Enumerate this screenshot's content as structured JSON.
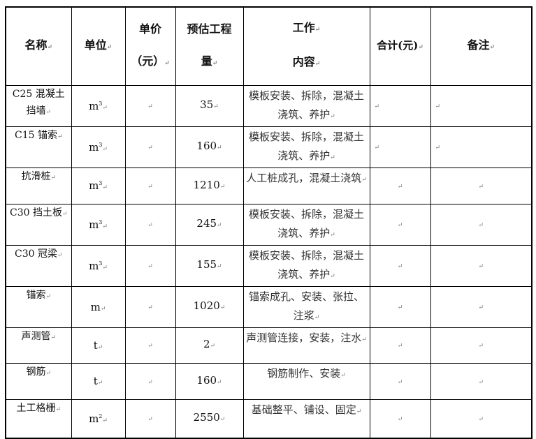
{
  "table": {
    "headers": [
      {
        "lines": [
          "名称"
        ]
      },
      {
        "lines": [
          "单位"
        ]
      },
      {
        "lines": [
          "单价",
          "（元）"
        ]
      },
      {
        "lines": [
          "预估工程",
          "量"
        ]
      },
      {
        "lines": [
          "工作",
          "内容"
        ]
      },
      {
        "lines": [
          "合计(元)"
        ]
      },
      {
        "lines": [
          "备注"
        ]
      }
    ],
    "rows": [
      {
        "name": "C25 混凝土挡墙",
        "unit": "m",
        "unit_sup": "3",
        "price": "",
        "qty": "35",
        "work": "模板安装、拆除，混凝土浇筑、养护",
        "total": "",
        "note": ""
      },
      {
        "name": "C15 锚索",
        "unit": "m",
        "unit_sup": "3",
        "price": "",
        "qty": "160",
        "work": "模板安装、拆除，混凝土浇筑、养护",
        "total": "",
        "note": ""
      },
      {
        "name": "抗滑桩",
        "unit": "m",
        "unit_sup": "3",
        "price": "",
        "qty": "1210",
        "work": "人工桩成孔，混凝土浇筑",
        "total": "",
        "note": ""
      },
      {
        "name": "C30 挡土板",
        "unit": "m",
        "unit_sup": "3",
        "price": "",
        "qty": "245",
        "work": "模板安装、拆除，混凝土浇筑、养护",
        "total": "",
        "note": ""
      },
      {
        "name": "C30 冠梁",
        "unit": "m",
        "unit_sup": "3",
        "price": "",
        "qty": "155",
        "work": "模板安装、拆除，混凝土浇筑、养护",
        "total": "",
        "note": ""
      },
      {
        "name": "锚索",
        "unit": "m",
        "unit_sup": "",
        "price": "",
        "qty": "1020",
        "work": "锚索成孔、安装、张拉、注浆",
        "total": "",
        "note": ""
      },
      {
        "name": "声测管",
        "unit": "t",
        "unit_sup": "",
        "price": "",
        "qty": "2",
        "work": "声测管连接，安装，注水",
        "total": "",
        "note": ""
      },
      {
        "name": "钢筋",
        "unit": "t",
        "unit_sup": "",
        "price": "",
        "qty": "160",
        "work": "钢筋制作、安装",
        "total": "",
        "note": ""
      },
      {
        "name": "土工格栅",
        "unit": "m",
        "unit_sup": "2",
        "price": "",
        "qty": "2550",
        "work": "基础整平、铺设、固定",
        "total": "",
        "note": ""
      }
    ]
  }
}
